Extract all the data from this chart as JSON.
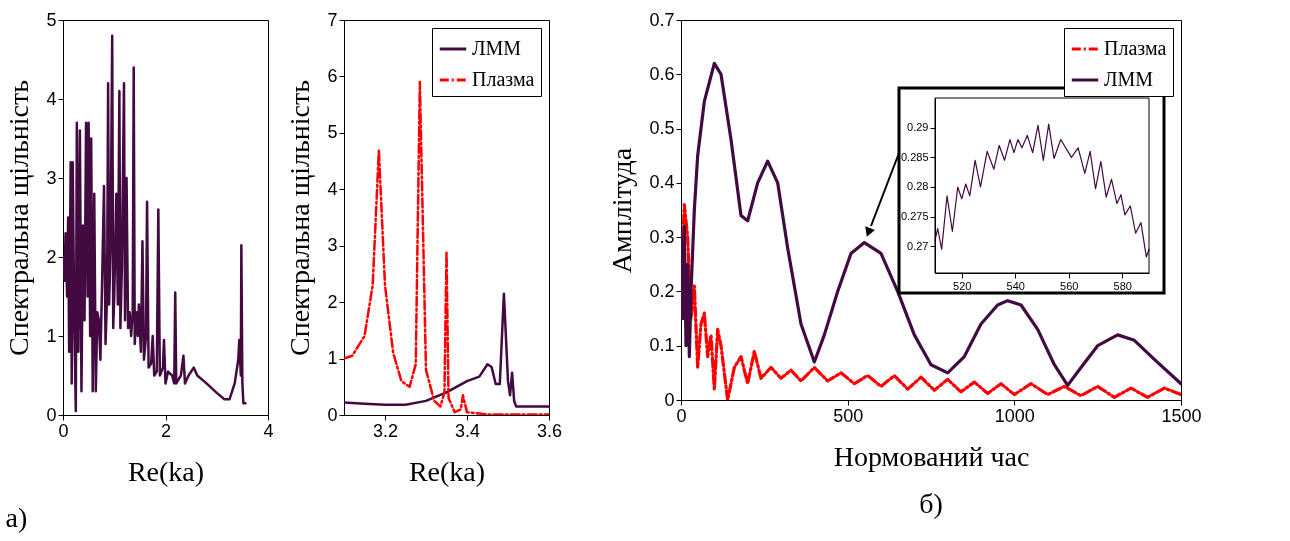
{
  "chart_data": [
    {
      "type": "line",
      "xlabel": "Re(ka)",
      "ylabel": "Спектральна  щільність",
      "annotations": [
        "а)"
      ],
      "xlim": [
        0,
        4
      ],
      "ylim": [
        0,
        5
      ],
      "xticks": [
        0,
        2,
        4
      ],
      "yticks": [
        0,
        1,
        2,
        3,
        4,
        5
      ],
      "color": "#420a41",
      "x": [
        0.0,
        0.03,
        0.05,
        0.08,
        0.1,
        0.12,
        0.15,
        0.17,
        0.19,
        0.22,
        0.25,
        0.27,
        0.3,
        0.33,
        0.36,
        0.39,
        0.42,
        0.45,
        0.48,
        0.5,
        0.53,
        0.55,
        0.58,
        0.61,
        0.64,
        0.67,
        0.7,
        0.73,
        0.76,
        0.8,
        0.83,
        0.86,
        0.88,
        0.9,
        0.93,
        0.96,
        0.98,
        1.0,
        1.04,
        1.07,
        1.1,
        1.12,
        1.15,
        1.19,
        1.21,
        1.24,
        1.27,
        1.3,
        1.33,
        1.36,
        1.38,
        1.4,
        1.43,
        1.46,
        1.48,
        1.52,
        1.55,
        1.58,
        1.62,
        1.64,
        1.67,
        1.72,
        1.75,
        1.78,
        1.83,
        1.86,
        1.89,
        1.95,
        1.97,
        2.0,
        2.05,
        2.13,
        2.17,
        2.19,
        2.21,
        2.3,
        2.35,
        2.38,
        2.45,
        2.55,
        2.62,
        2.8,
        3.0,
        3.15,
        3.25,
        3.35,
        3.42,
        3.44,
        3.47,
        3.48,
        3.5,
        3.52,
        3.56
      ],
      "values": [
        2.0,
        1.7,
        2.3,
        1.5,
        2.5,
        0.8,
        3.2,
        0.4,
        3.2,
        1.2,
        0.05,
        3.7,
        0.8,
        3.6,
        0.3,
        2.4,
        1.2,
        3.7,
        1.5,
        3.7,
        1.0,
        3.5,
        0.3,
        2.8,
        0.3,
        1.3,
        1.2,
        0.7,
        1.6,
        2.9,
        0.9,
        1.5,
        4.2,
        1.4,
        2.2,
        4.8,
        1.1,
        1.5,
        2.8,
        1.4,
        4.1,
        1.1,
        1.9,
        4.2,
        1.2,
        3.0,
        1.1,
        1.3,
        1.0,
        1.3,
        4.4,
        0.9,
        1.3,
        1.0,
        1.4,
        0.8,
        2.2,
        0.7,
        1.0,
        2.7,
        0.6,
        0.65,
        1.0,
        0.5,
        0.55,
        2.6,
        0.5,
        0.6,
        0.95,
        0.4,
        0.55,
        0.5,
        0.4,
        1.55,
        0.4,
        0.5,
        0.75,
        0.4,
        0.5,
        0.6,
        0.5,
        0.4,
        0.28,
        0.2,
        0.2,
        0.4,
        0.7,
        0.95,
        0.5,
        2.15,
        0.4,
        0.15,
        0.15
      ]
    },
    {
      "type": "line",
      "xlabel": "Re(ka)",
      "ylabel": "Спектральна  щільність",
      "xlim": [
        3.1,
        3.6
      ],
      "ylim": [
        0,
        7
      ],
      "xticks": [
        3.2,
        3.4,
        3.6
      ],
      "yticks": [
        0,
        1,
        2,
        3,
        4,
        5,
        6,
        7
      ],
      "legend": "top right",
      "series": [
        {
          "name": "ЛММ",
          "color": "#420a41",
          "x": [
            3.1,
            3.15,
            3.2,
            3.25,
            3.3,
            3.35,
            3.4,
            3.43,
            3.45,
            3.46,
            3.47,
            3.48,
            3.49,
            3.5,
            3.505,
            3.51,
            3.515,
            3.52,
            3.6
          ],
          "values": [
            0.22,
            0.2,
            0.18,
            0.18,
            0.25,
            0.4,
            0.6,
            0.68,
            0.9,
            0.85,
            0.55,
            0.55,
            2.15,
            0.6,
            0.35,
            0.75,
            0.25,
            0.15,
            0.15
          ]
        },
        {
          "name": "Плазма",
          "color": "#ff0000",
          "line_style": "dashdot",
          "x": [
            3.1,
            3.12,
            3.15,
            3.17,
            3.185,
            3.2,
            3.22,
            3.24,
            3.26,
            3.275,
            3.285,
            3.3,
            3.32,
            3.335,
            3.345,
            3.35,
            3.355,
            3.37,
            3.385,
            3.39,
            3.4,
            3.45,
            3.6
          ],
          "values": [
            1.0,
            1.05,
            1.4,
            2.3,
            4.7,
            2.3,
            1.1,
            0.6,
            0.5,
            0.9,
            5.9,
            0.8,
            0.25,
            0.15,
            0.4,
            2.9,
            0.3,
            0.05,
            0.1,
            0.35,
            0.05,
            0.01,
            0.01
          ]
        }
      ]
    },
    {
      "type": "line",
      "xlabel": "Нормований час",
      "ylabel": "Амплітуда",
      "annotations": [
        "б)"
      ],
      "xlim": [
        0,
        1500
      ],
      "ylim": [
        0,
        0.7
      ],
      "xticks": [
        0,
        500,
        1000,
        1500
      ],
      "yticks": [
        0,
        0.1,
        0.2,
        0.3,
        0.4,
        0.5,
        0.6,
        0.7
      ],
      "legend": "top right",
      "series": [
        {
          "name": "Плазма",
          "color": "#ff0000",
          "line_style": "dashdot",
          "x": [
            0,
            10,
            20,
            30,
            40,
            50,
            60,
            70,
            80,
            90,
            100,
            110,
            120,
            140,
            160,
            180,
            200,
            220,
            240,
            270,
            300,
            330,
            360,
            400,
            440,
            480,
            520,
            560,
            600,
            640,
            680,
            720,
            760,
            800,
            840,
            880,
            920,
            960,
            1000,
            1050,
            1100,
            1150,
            1200,
            1250,
            1300,
            1350,
            1400,
            1450,
            1500
          ],
          "values": [
            0.2,
            0.36,
            0.3,
            0.15,
            0.21,
            0.06,
            0.14,
            0.16,
            0.08,
            0.12,
            0.02,
            0.13,
            0.1,
            0.0,
            0.06,
            0.08,
            0.03,
            0.09,
            0.04,
            0.06,
            0.04,
            0.055,
            0.035,
            0.06,
            0.035,
            0.05,
            0.03,
            0.045,
            0.025,
            0.045,
            0.02,
            0.042,
            0.018,
            0.038,
            0.015,
            0.033,
            0.012,
            0.03,
            0.01,
            0.03,
            0.01,
            0.025,
            0.008,
            0.025,
            0.005,
            0.022,
            0.005,
            0.022,
            0.01
          ]
        },
        {
          "name": "ЛММ",
          "color": "#420a41",
          "x": [
            0,
            5,
            10,
            15,
            20,
            25,
            30,
            40,
            50,
            70,
            100,
            120,
            150,
            180,
            200,
            230,
            260,
            290,
            320,
            360,
            400,
            430,
            470,
            510,
            550,
            600,
            650,
            700,
            750,
            800,
            850,
            900,
            950,
            980,
            1020,
            1070,
            1120,
            1160,
            1200,
            1250,
            1310,
            1360,
            1420,
            1500
          ],
          "values": [
            0.3,
            0.15,
            0.32,
            0.1,
            0.25,
            0.08,
            0.2,
            0.35,
            0.45,
            0.55,
            0.62,
            0.6,
            0.48,
            0.34,
            0.33,
            0.4,
            0.44,
            0.4,
            0.28,
            0.14,
            0.07,
            0.12,
            0.2,
            0.27,
            0.29,
            0.27,
            0.2,
            0.12,
            0.065,
            0.05,
            0.08,
            0.14,
            0.175,
            0.183,
            0.175,
            0.13,
            0.065,
            0.027,
            0.06,
            0.1,
            0.12,
            0.11,
            0.075,
            0.03
          ]
        }
      ]
    },
    {
      "type": "line",
      "xlim": [
        510,
        590
      ],
      "ylim": [
        0.2655,
        0.295
      ],
      "xticks": [
        520,
        540,
        560,
        580
      ],
      "yticks": [
        0.27,
        0.275,
        0.28,
        0.285,
        0.29
      ],
      "color": "#420a41",
      "x": [
        510,
        511,
        512.5,
        514.5,
        516.5,
        518.5,
        520,
        521.5,
        523,
        525,
        527,
        529.5,
        532,
        534,
        536,
        538,
        539.5,
        541,
        542.5,
        544.5,
        546.5,
        548.5,
        550.5,
        552.5,
        554.5,
        557,
        559,
        561,
        563.5,
        566,
        568,
        570,
        572,
        574,
        576,
        578,
        579.5,
        581,
        583,
        585,
        587,
        589,
        590
      ],
      "values": [
        0.271,
        0.273,
        0.2695,
        0.2785,
        0.2725,
        0.28,
        0.278,
        0.2805,
        0.2785,
        0.2845,
        0.28,
        0.286,
        0.283,
        0.287,
        0.2845,
        0.288,
        0.2858,
        0.288,
        0.2866,
        0.2887,
        0.2858,
        0.2904,
        0.2845,
        0.2906,
        0.2848,
        0.288,
        0.2865,
        0.285,
        0.2866,
        0.2823,
        0.286,
        0.2797,
        0.2843,
        0.2783,
        0.2813,
        0.2772,
        0.2787,
        0.2753,
        0.2768,
        0.2722,
        0.274,
        0.2682,
        0.2695
      ]
    }
  ]
}
